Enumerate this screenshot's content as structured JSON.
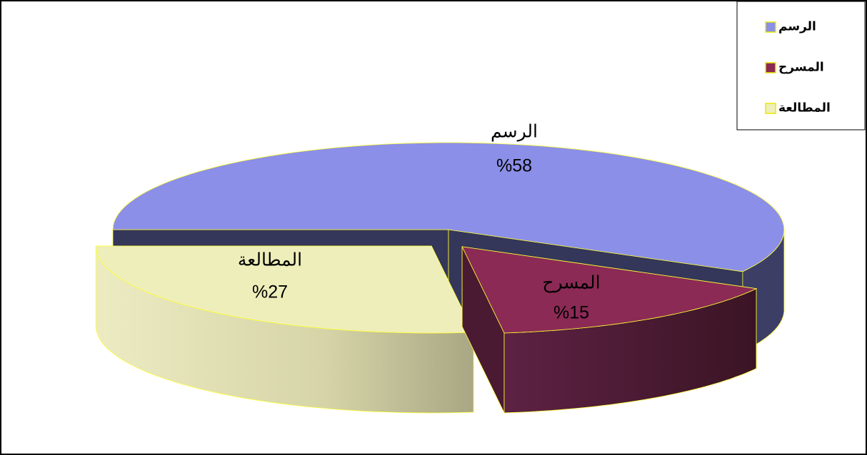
{
  "chart_data": {
    "type": "pie",
    "categories": [
      "الرسم",
      "المسرح",
      "المطالعة"
    ],
    "values": [
      58,
      15,
      27
    ],
    "value_labels": [
      "%58",
      "%15",
      "%27"
    ],
    "colors": [
      "#8b8fe8",
      "#8b2a55",
      "#eeeebb"
    ],
    "legend": "top-right"
  }
}
